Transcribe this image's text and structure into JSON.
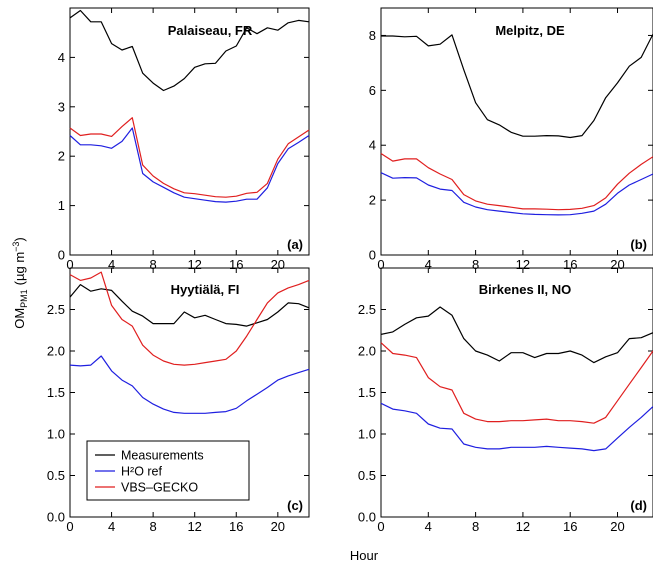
{
  "figure": {
    "xlabel": "Hour",
    "ylabel_main": "OM",
    "ylabel_sub": "PM1",
    "ylabel_unit": "(µg m",
    "ylabel_sup": "−3",
    "ylabel_close": ")"
  },
  "legend": {
    "entries": [
      {
        "label": "Measurements",
        "color": "#000000"
      },
      {
        "label": "H²O ref",
        "color": "#1f1fe0"
      },
      {
        "label": "VBS–GECKO",
        "color": "#e01f1f"
      }
    ]
  },
  "chart_data": [
    {
      "type": "line",
      "title": "Palaiseau, FR",
      "tag": "(a)",
      "xlim": [
        0,
        23
      ],
      "ylim": [
        0,
        5
      ],
      "xticks": [
        0,
        4,
        8,
        12,
        16,
        20
      ],
      "yticks": [
        0,
        1,
        2,
        3,
        4
      ],
      "ytick_labels": [
        "0",
        "1",
        "2",
        "3",
        "4"
      ],
      "x": [
        0,
        1,
        2,
        3,
        4,
        5,
        6,
        7,
        8,
        9,
        10,
        11,
        12,
        13,
        14,
        15,
        16,
        17,
        18,
        19,
        20,
        21,
        22,
        23
      ],
      "series": [
        {
          "name": "Measurements",
          "color": "#000000",
          "values": [
            4.8,
            4.95,
            4.72,
            4.72,
            4.28,
            4.15,
            4.22,
            3.68,
            3.48,
            3.33,
            3.42,
            3.57,
            3.8,
            3.87,
            3.88,
            4.13,
            4.23,
            4.6,
            4.48,
            4.6,
            4.55,
            4.7,
            4.75,
            4.72
          ]
        },
        {
          "name": "H²O ref",
          "color": "#1f1fe0",
          "values": [
            2.42,
            2.23,
            2.23,
            2.21,
            2.16,
            2.3,
            2.57,
            1.65,
            1.48,
            1.37,
            1.26,
            1.17,
            1.14,
            1.11,
            1.08,
            1.07,
            1.09,
            1.13,
            1.13,
            1.36,
            1.85,
            2.15,
            2.28,
            2.42
          ]
        },
        {
          "name": "VBS–GECKO",
          "color": "#e01f1f",
          "values": [
            2.57,
            2.42,
            2.45,
            2.45,
            2.4,
            2.6,
            2.78,
            1.82,
            1.6,
            1.45,
            1.34,
            1.26,
            1.24,
            1.21,
            1.18,
            1.17,
            1.19,
            1.25,
            1.27,
            1.45,
            1.94,
            2.25,
            2.39,
            2.53
          ]
        }
      ]
    },
    {
      "type": "line",
      "title": "Melpitz, DE",
      "tag": "(b)",
      "xlim": [
        0,
        23
      ],
      "ylim": [
        0,
        9
      ],
      "xticks": [
        0,
        4,
        8,
        12,
        16,
        20
      ],
      "yticks": [
        0,
        2,
        4,
        6,
        8
      ],
      "ytick_labels": [
        "0",
        "2",
        "4",
        "6",
        "8"
      ],
      "x": [
        0,
        1,
        2,
        3,
        4,
        5,
        6,
        7,
        8,
        9,
        10,
        11,
        12,
        13,
        14,
        15,
        16,
        17,
        18,
        19,
        20,
        21,
        22,
        23
      ],
      "series": [
        {
          "name": "Measurements",
          "color": "#000000",
          "values": [
            7.98,
            7.98,
            7.95,
            7.97,
            7.62,
            7.68,
            8.02,
            6.75,
            5.55,
            4.93,
            4.74,
            4.47,
            4.33,
            4.33,
            4.35,
            4.34,
            4.28,
            4.35,
            4.9,
            5.73,
            6.27,
            6.88,
            7.2,
            8.05
          ]
        },
        {
          "name": "H²O ref",
          "color": "#1f1fe0",
          "values": [
            3.0,
            2.8,
            2.82,
            2.81,
            2.55,
            2.4,
            2.35,
            1.92,
            1.75,
            1.65,
            1.6,
            1.55,
            1.5,
            1.48,
            1.47,
            1.46,
            1.47,
            1.52,
            1.6,
            1.85,
            2.25,
            2.55,
            2.75,
            2.95
          ]
        },
        {
          "name": "VBS–GECKO",
          "color": "#e01f1f",
          "values": [
            3.7,
            3.42,
            3.5,
            3.5,
            3.18,
            2.95,
            2.75,
            2.2,
            1.97,
            1.85,
            1.8,
            1.74,
            1.68,
            1.68,
            1.67,
            1.65,
            1.66,
            1.7,
            1.8,
            2.08,
            2.58,
            2.98,
            3.3,
            3.58
          ]
        }
      ]
    },
    {
      "type": "line",
      "title": "Hyytiälä, FI",
      "tag": "(c)",
      "xlim": [
        0,
        23
      ],
      "ylim": [
        0,
        3
      ],
      "xticks": [
        0,
        4,
        8,
        12,
        16,
        20
      ],
      "yticks": [
        0,
        0.5,
        1,
        1.5,
        2,
        2.5
      ],
      "ytick_labels": [
        "0.0",
        "0.5",
        "1.0",
        "1.5",
        "2.0",
        "2.5"
      ],
      "x": [
        0,
        1,
        2,
        3,
        4,
        5,
        6,
        7,
        8,
        9,
        10,
        11,
        12,
        13,
        14,
        15,
        16,
        17,
        18,
        19,
        20,
        21,
        22,
        23
      ],
      "series": [
        {
          "name": "Measurements",
          "color": "#000000",
          "values": [
            2.65,
            2.8,
            2.72,
            2.75,
            2.73,
            2.6,
            2.48,
            2.42,
            2.33,
            2.33,
            2.33,
            2.47,
            2.4,
            2.43,
            2.38,
            2.33,
            2.32,
            2.3,
            2.34,
            2.38,
            2.47,
            2.58,
            2.57,
            2.52
          ]
        },
        {
          "name": "H²O ref",
          "color": "#1f1fe0",
          "values": [
            1.83,
            1.82,
            1.83,
            1.94,
            1.76,
            1.65,
            1.58,
            1.44,
            1.36,
            1.3,
            1.26,
            1.25,
            1.25,
            1.25,
            1.26,
            1.27,
            1.31,
            1.4,
            1.48,
            1.56,
            1.65,
            1.7,
            1.74,
            1.78
          ]
        },
        {
          "name": "VBS–GECKO",
          "color": "#e01f1f",
          "values": [
            2.92,
            2.85,
            2.88,
            2.95,
            2.55,
            2.38,
            2.3,
            2.07,
            1.95,
            1.88,
            1.84,
            1.83,
            1.84,
            1.86,
            1.88,
            1.9,
            2.0,
            2.18,
            2.38,
            2.58,
            2.7,
            2.76,
            2.8,
            2.85
          ]
        }
      ]
    },
    {
      "type": "line",
      "title": "Birkenes II, NO",
      "tag": "(d)",
      "xlim": [
        0,
        23
      ],
      "ylim": [
        0,
        3
      ],
      "xticks": [
        0,
        4,
        8,
        12,
        16,
        20
      ],
      "yticks": [
        0,
        0.5,
        1,
        1.5,
        2,
        2.5
      ],
      "ytick_labels": [
        "0.0",
        "0.5",
        "1.0",
        "1.5",
        "2.0",
        "2.5"
      ],
      "x": [
        0,
        1,
        2,
        3,
        4,
        5,
        6,
        7,
        8,
        9,
        10,
        11,
        12,
        13,
        14,
        15,
        16,
        17,
        18,
        19,
        20,
        21,
        22,
        23
      ],
      "series": [
        {
          "name": "Measurements",
          "color": "#000000",
          "values": [
            2.2,
            2.23,
            2.32,
            2.4,
            2.42,
            2.53,
            2.43,
            2.15,
            2.0,
            1.95,
            1.88,
            1.98,
            1.98,
            1.92,
            1.97,
            1.97,
            2.0,
            1.95,
            1.86,
            1.93,
            1.98,
            2.15,
            2.16,
            2.22
          ]
        },
        {
          "name": "H²O ref",
          "color": "#1f1fe0",
          "values": [
            1.37,
            1.3,
            1.28,
            1.25,
            1.12,
            1.07,
            1.06,
            0.88,
            0.84,
            0.82,
            0.82,
            0.84,
            0.84,
            0.84,
            0.85,
            0.84,
            0.83,
            0.82,
            0.8,
            0.82,
            0.95,
            1.08,
            1.2,
            1.33
          ]
        },
        {
          "name": "VBS–GECKO",
          "color": "#e01f1f",
          "values": [
            2.1,
            1.97,
            1.95,
            1.92,
            1.68,
            1.57,
            1.53,
            1.25,
            1.18,
            1.15,
            1.15,
            1.16,
            1.16,
            1.17,
            1.18,
            1.16,
            1.16,
            1.15,
            1.13,
            1.2,
            1.4,
            1.6,
            1.8,
            2.0
          ]
        }
      ]
    }
  ]
}
